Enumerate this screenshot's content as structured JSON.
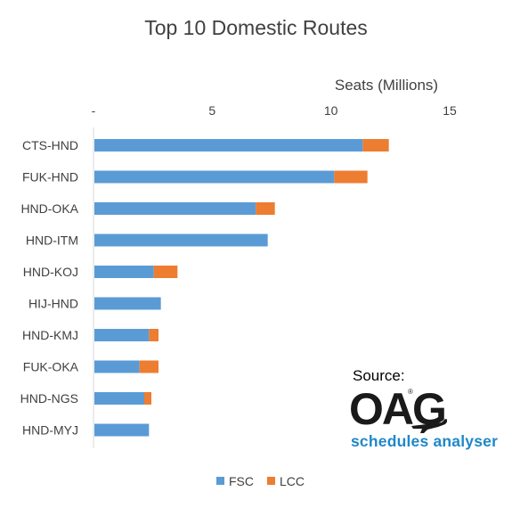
{
  "chart_data": {
    "type": "bar",
    "orientation": "horizontal",
    "stacked": true,
    "title": "Top 10 Domestic Routes",
    "xlabel": "Seats (Millions)",
    "xlim": [
      0,
      15
    ],
    "x_ticks": [
      0,
      5,
      10,
      15
    ],
    "x_tick_labels": [
      "-",
      "5",
      "10",
      "15"
    ],
    "x_axis_position": "top",
    "grid": false,
    "legend_position": "bottom",
    "categories": [
      "CTS-HND",
      "FUK-HND",
      "HND-OKA",
      "HND-ITM",
      "HND-KOJ",
      "HIJ-HND",
      "HND-KMJ",
      "FUK-OKA",
      "HND-NGS",
      "HND-MYJ"
    ],
    "series": [
      {
        "name": "FSC",
        "color": "#5b9bd5",
        "values": [
          11.3,
          10.1,
          6.8,
          7.3,
          2.5,
          2.8,
          2.3,
          1.9,
          2.1,
          2.3
        ]
      },
      {
        "name": "LCC",
        "color": "#ed7d31",
        "values": [
          1.1,
          1.4,
          0.8,
          0,
          1.0,
          0,
          0.4,
          0.8,
          0.3,
          0
        ]
      }
    ]
  },
  "source": {
    "label": "Source:",
    "logo_text": "OAG",
    "logo_registered": "®",
    "tagline": "schedules analyser",
    "brand_color": "#1f88c9"
  }
}
